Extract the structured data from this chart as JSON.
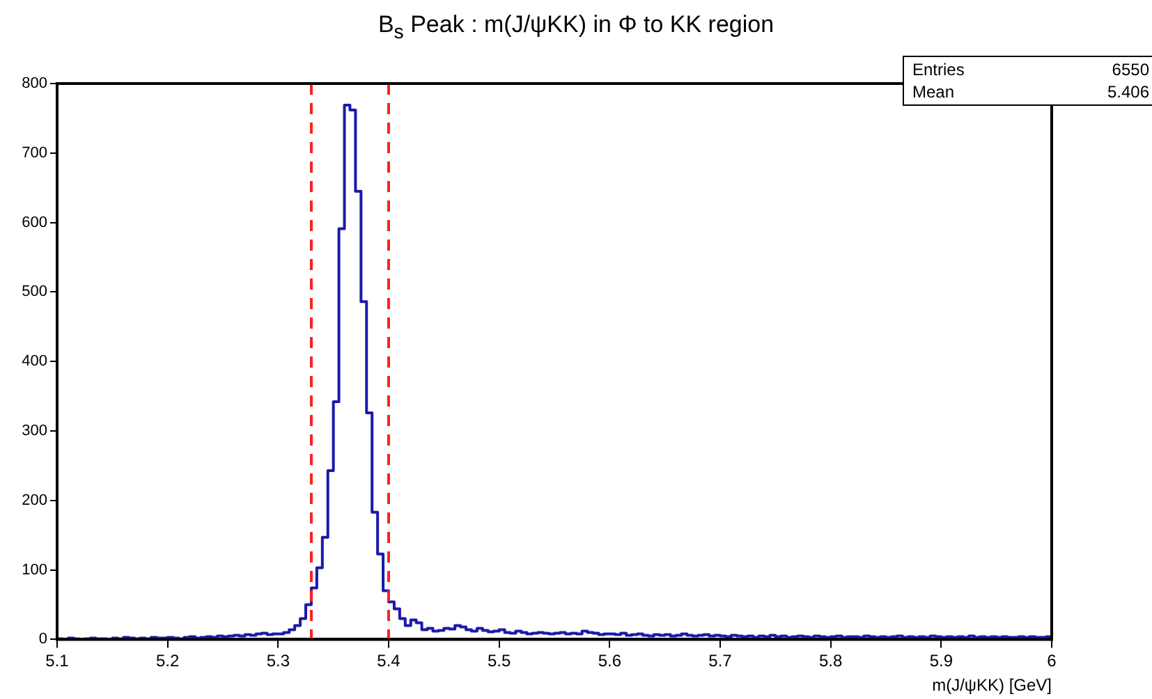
{
  "chart_data": {
    "type": "histogram",
    "title": "B$_{s}$ Peak : m(J/ψKK) in Φ to KK region",
    "xlabel": "m(J/ψKK) [GeV]",
    "color": "#1a1aa8",
    "grid": false,
    "legend": false,
    "xlim": [
      5.1,
      6
    ],
    "xticks": [
      5.1,
      5.2,
      5.3,
      5.4,
      5.5,
      5.6,
      5.7,
      5.8,
      5.9,
      6
    ],
    "ylim": [
      0,
      800
    ],
    "yticks": [
      0,
      100,
      200,
      300,
      400,
      500,
      600,
      700,
      800
    ],
    "bins": [
      5.1,
      5.105,
      5.11,
      5.115,
      5.12,
      5.125,
      5.13,
      5.135,
      5.14,
      5.145,
      5.15,
      5.155,
      5.16,
      5.165,
      5.17,
      5.175,
      5.18,
      5.185,
      5.19,
      5.195,
      5.2,
      5.205,
      5.21,
      5.215,
      5.22,
      5.225,
      5.23,
      5.235,
      5.24,
      5.245,
      5.25,
      5.255,
      5.26,
      5.265,
      5.27,
      5.275,
      5.28,
      5.285,
      5.29,
      5.295,
      5.3,
      5.305,
      5.31,
      5.315,
      5.32,
      5.325,
      5.33,
      5.335,
      5.34,
      5.345,
      5.35,
      5.355,
      5.36,
      5.365,
      5.37,
      5.375,
      5.38,
      5.385,
      5.39,
      5.395,
      5.4,
      5.405,
      5.41,
      5.415,
      5.42,
      5.425,
      5.43,
      5.435,
      5.44,
      5.445,
      5.45,
      5.455,
      5.46,
      5.465,
      5.47,
      5.475,
      5.48,
      5.485,
      5.49,
      5.495,
      5.5,
      5.505,
      5.51,
      5.515,
      5.52,
      5.525,
      5.53,
      5.535,
      5.54,
      5.545,
      5.55,
      5.555,
      5.56,
      5.565,
      5.57,
      5.575,
      5.58,
      5.585,
      5.59,
      5.595,
      5.6,
      5.605,
      5.61,
      5.615,
      5.62,
      5.625,
      5.63,
      5.635,
      5.64,
      5.645,
      5.65,
      5.655,
      5.66,
      5.665,
      5.67,
      5.675,
      5.68,
      5.685,
      5.69,
      5.695,
      5.7,
      5.705,
      5.71,
      5.715,
      5.72,
      5.725,
      5.73,
      5.735,
      5.74,
      5.745,
      5.75,
      5.755,
      5.76,
      5.765,
      5.77,
      5.775,
      5.78,
      5.785,
      5.79,
      5.795,
      5.8,
      5.805,
      5.81,
      5.815,
      5.82,
      5.825,
      5.83,
      5.835,
      5.84,
      5.845,
      5.85,
      5.855,
      5.86,
      5.865,
      5.87,
      5.875,
      5.88,
      5.885,
      5.89,
      5.895,
      5.9,
      5.905,
      5.91,
      5.915,
      5.92,
      5.925,
      5.93,
      5.935,
      5.94,
      5.945,
      5.95,
      5.955,
      5.96,
      5.965,
      5.97,
      5.975,
      5.98,
      5.985,
      5.99,
      5.995,
      6
    ],
    "values": [
      1,
      0,
      2,
      1,
      0,
      1,
      2,
      1,
      1,
      0,
      2,
      1,
      3,
      2,
      1,
      2,
      1,
      3,
      2,
      2,
      3,
      2,
      1,
      3,
      4,
      2,
      3,
      4,
      3,
      5,
      4,
      5,
      6,
      5,
      7,
      6,
      8,
      9,
      7,
      8,
      8,
      10,
      14,
      20,
      30,
      50,
      74,
      103,
      147,
      243,
      342,
      591,
      769,
      762,
      645,
      486,
      326,
      183,
      123,
      70,
      54,
      44,
      30,
      20,
      28,
      24,
      14,
      16,
      12,
      13,
      16,
      15,
      20,
      18,
      14,
      12,
      16,
      13,
      11,
      12,
      14,
      10,
      9,
      12,
      10,
      8,
      9,
      10,
      9,
      8,
      9,
      10,
      8,
      9,
      8,
      12,
      10,
      9,
      7,
      8,
      8,
      7,
      9,
      6,
      7,
      8,
      6,
      5,
      7,
      6,
      7,
      5,
      6,
      8,
      6,
      5,
      6,
      7,
      5,
      6,
      5,
      4,
      6,
      5,
      4,
      5,
      3,
      5,
      4,
      6,
      4,
      5,
      3,
      4,
      5,
      4,
      3,
      5,
      4,
      3,
      4,
      5,
      3,
      4,
      4,
      3,
      5,
      4,
      3,
      4,
      3,
      4,
      5,
      3,
      4,
      3,
      4,
      3,
      5,
      4,
      3,
      4,
      3,
      4,
      3,
      5,
      3,
      4,
      3,
      4,
      3,
      4,
      3,
      3,
      4,
      3,
      4,
      3,
      3,
      4
    ],
    "ref_lines": [
      {
        "axis": "x",
        "value": 5.33,
        "color": "#ff2020",
        "line_style": "dashed"
      },
      {
        "axis": "x",
        "value": 5.4,
        "color": "#ff2020",
        "line_style": "dashed"
      }
    ],
    "annotations": [
      "Entries",
      "6550",
      "Mean",
      "5.406"
    ]
  }
}
